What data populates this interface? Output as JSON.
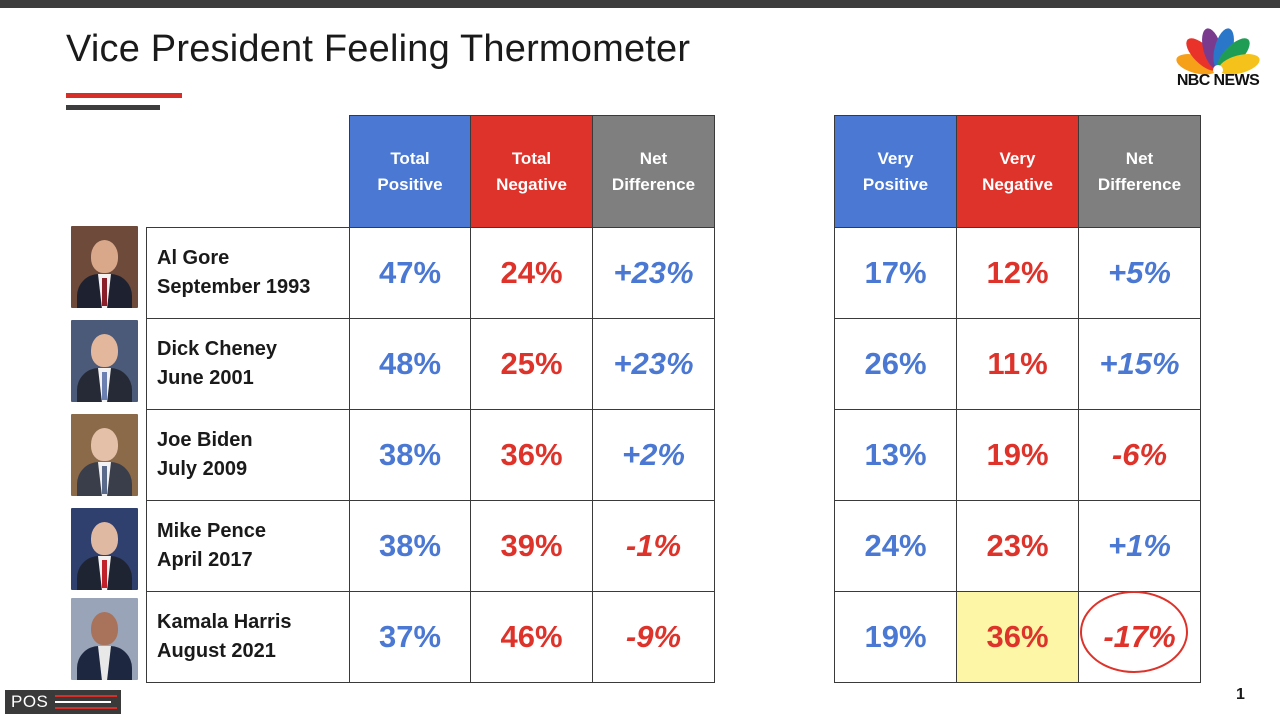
{
  "title": "Vice President Feeling Thermometer",
  "logo": {
    "text": "NBC NEWS"
  },
  "page_number": "1",
  "footer_logo": "POS",
  "colors": {
    "positive": "#4a78d2",
    "negative": "#dd332b",
    "net": "#7f7f7f",
    "highlight": "#fcf6a6"
  },
  "chart_data": {
    "type": "table",
    "title": "Vice President Feeling Thermometer",
    "columns_left": [
      "Total Positive",
      "Total Negative",
      "Net Difference"
    ],
    "columns_right": [
      "Very Positive",
      "Very Negative",
      "Net Difference"
    ],
    "rows": [
      {
        "name": "Al Gore",
        "date": "September 1993",
        "total_positive": "47%",
        "total_negative": "24%",
        "total_net": "+23%",
        "very_positive": "17%",
        "very_negative": "12%",
        "very_net": "+5%"
      },
      {
        "name": "Dick Cheney",
        "date": "June 2001",
        "total_positive": "48%",
        "total_negative": "25%",
        "total_net": "+23%",
        "very_positive": "26%",
        "very_negative": "11%",
        "very_net": "+15%"
      },
      {
        "name": "Joe Biden",
        "date": "July 2009",
        "total_positive": "38%",
        "total_negative": "36%",
        "total_net": "+2%",
        "very_positive": "13%",
        "very_negative": "19%",
        "very_net": "-6%"
      },
      {
        "name": "Mike Pence",
        "date": "April 2017",
        "total_positive": "38%",
        "total_negative": "39%",
        "total_net": "-1%",
        "very_positive": "24%",
        "very_negative": "23%",
        "very_net": "+1%"
      },
      {
        "name": "Kamala Harris",
        "date": "August 2021",
        "total_positive": "37%",
        "total_negative": "46%",
        "total_net": "-9%",
        "very_positive": "19%",
        "very_negative": "36%",
        "very_net": "-17%"
      }
    ]
  }
}
